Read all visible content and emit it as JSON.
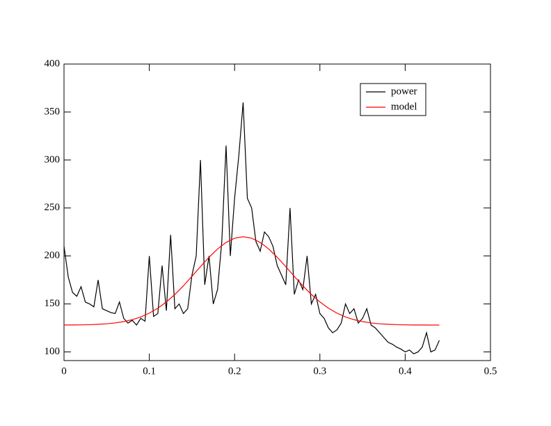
{
  "chart_data": {
    "type": "line",
    "series": [
      {
        "name": "power",
        "color": "#000000",
        "x": [
          0,
          0.005,
          0.01,
          0.015,
          0.02,
          0.025,
          0.03,
          0.035,
          0.04,
          0.045,
          0.05,
          0.055,
          0.06,
          0.065,
          0.07,
          0.075,
          0.08,
          0.085,
          0.09,
          0.095,
          0.1,
          0.105,
          0.11,
          0.115,
          0.12,
          0.125,
          0.13,
          0.135,
          0.14,
          0.145,
          0.15,
          0.155,
          0.16,
          0.165,
          0.17,
          0.175,
          0.18,
          0.185,
          0.19,
          0.195,
          0.2,
          0.205,
          0.21,
          0.215,
          0.22,
          0.225,
          0.23,
          0.235,
          0.24,
          0.245,
          0.25,
          0.255,
          0.26,
          0.265,
          0.27,
          0.275,
          0.28,
          0.285,
          0.29,
          0.295,
          0.3,
          0.305,
          0.31,
          0.315,
          0.32,
          0.325,
          0.33,
          0.335,
          0.34,
          0.345,
          0.35,
          0.355,
          0.36,
          0.365,
          0.37,
          0.375,
          0.38,
          0.385,
          0.39,
          0.395,
          0.4,
          0.405,
          0.41,
          0.415,
          0.42,
          0.425,
          0.43,
          0.435,
          0.44
        ],
        "values": [
          210,
          178,
          162,
          158,
          168,
          152,
          150,
          147,
          175,
          145,
          143,
          141,
          140,
          152,
          135,
          130,
          133,
          128,
          135,
          132,
          200,
          137,
          140,
          190,
          143,
          222,
          145,
          150,
          140,
          145,
          180,
          200,
          300,
          170,
          200,
          150,
          165,
          215,
          315,
          200,
          260,
          305,
          360,
          260,
          250,
          215,
          205,
          225,
          220,
          210,
          190,
          180,
          170,
          250,
          160,
          175,
          165,
          200,
          150,
          160,
          140,
          135,
          125,
          120,
          123,
          130,
          150,
          140,
          145,
          130,
          135,
          145,
          128,
          125,
          120,
          115,
          110,
          108,
          105,
          103,
          100,
          102,
          98,
          100,
          105,
          120,
          100,
          102,
          112
        ]
      },
      {
        "name": "model",
        "color": "#ff0000",
        "x": [
          0,
          0.01,
          0.02,
          0.03,
          0.04,
          0.05,
          0.06,
          0.07,
          0.08,
          0.09,
          0.1,
          0.11,
          0.12,
          0.13,
          0.14,
          0.15,
          0.16,
          0.17,
          0.18,
          0.19,
          0.2,
          0.21,
          0.22,
          0.23,
          0.24,
          0.25,
          0.26,
          0.27,
          0.28,
          0.29,
          0.3,
          0.31,
          0.32,
          0.33,
          0.34,
          0.35,
          0.36,
          0.37,
          0.38,
          0.39,
          0.4,
          0.41,
          0.42,
          0.43,
          0.44
        ],
        "values": [
          128.1,
          128.1,
          128.2,
          128.4,
          128.8,
          129.3,
          130.2,
          131.6,
          133.6,
          136.5,
          140.4,
          145.6,
          152.1,
          159.9,
          168.9,
          178.8,
          188.9,
          198.7,
          207.3,
          214.1,
          218.5,
          220,
          218.5,
          214.1,
          207.3,
          198.7,
          188.9,
          178.8,
          168.9,
          159.9,
          152.1,
          145.6,
          140.4,
          136.5,
          133.6,
          131.6,
          130.2,
          129.3,
          128.8,
          128.4,
          128.2,
          128.1,
          128.1,
          128,
          128
        ]
      }
    ],
    "xlim": [
      0,
      0.5
    ],
    "ylim": [
      91,
      400
    ],
    "xticks": [
      0,
      0.1,
      0.2,
      0.3,
      0.4,
      0.5
    ],
    "yticks": [
      100,
      150,
      200,
      250,
      300,
      350,
      400
    ],
    "legend": "upper-right",
    "grid": false
  }
}
